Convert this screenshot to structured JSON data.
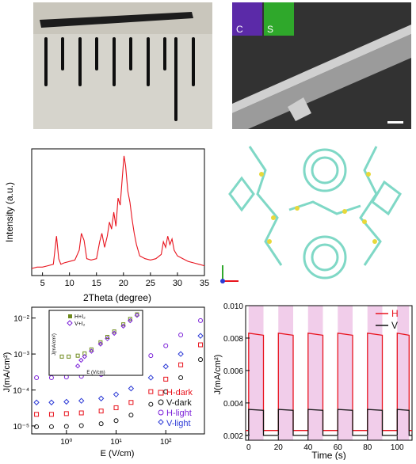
{
  "sem": {
    "map_c": "C",
    "map_s": "S"
  },
  "xrd": {
    "ylabel": "Intensity (a.u.)",
    "xlabel": "2Theta (degree)",
    "xticks": [
      "5",
      "10",
      "15",
      "20",
      "25",
      "30",
      "35"
    ]
  },
  "crystal": {
    "axes": [
      "Y",
      "Z",
      "X"
    ]
  },
  "jv": {
    "ylabel": "J(mA/cm²)",
    "xlabel": "E (V/cm)",
    "yticks": [
      "10⁻⁵",
      "10⁻⁴",
      "10⁻³",
      "10⁻²"
    ],
    "xticks": [
      "10⁰",
      "10¹",
      "10²"
    ],
    "legend": [
      "H-dark",
      "V-dark",
      "H-light",
      "V-light"
    ],
    "inset": {
      "legend": [
        "H+I₂",
        "V+I₂"
      ],
      "ylabel": "J(mA/cm²)",
      "xlabel": "E (V/cm)",
      "yticks": [
        "10⁰",
        "10⁻¹",
        "10⁻²",
        "10⁻³"
      ],
      "xticks": [
        "10⁻¹",
        "10⁰",
        "10¹",
        "10²"
      ]
    },
    "colors": {
      "H-dark": "#e8141e",
      "V-dark": "#111111",
      "H-light": "#7a1fd8",
      "V-light": "#2c3ad6"
    }
  },
  "jt": {
    "ylabel": "J(mA/cm²)",
    "xlabel": "Time (s)",
    "yticks": [
      "0.002",
      "0.004",
      "0.006",
      "0.008",
      "0.010"
    ],
    "xticks": [
      "0",
      "20",
      "40",
      "60",
      "80",
      "100"
    ],
    "legend": [
      "H",
      "V"
    ],
    "colors": {
      "H": "#e8141e",
      "V": "#111111",
      "light": "#f1cdea"
    }
  },
  "chart_data": [
    {
      "type": "line",
      "xlabel": "2Theta (degree)",
      "ylabel": "Intensity (a.u.)",
      "xlim": [
        3,
        35
      ],
      "series": [
        {
          "x": [
            3,
            4,
            5,
            6,
            7,
            7.6,
            8,
            8.4,
            9,
            10,
            11,
            11.8,
            12.2,
            12.7,
            13.2,
            14,
            15,
            15.6,
            16,
            16.5,
            17,
            17.4,
            17.8,
            18.2,
            18.6,
            19,
            19.4,
            19.8,
            20.1,
            20.4,
            20.8,
            21.2,
            21.6,
            22,
            22.4,
            23,
            24,
            25,
            26,
            27,
            27.4,
            27.8,
            28.2,
            28.6,
            29,
            29.4,
            30,
            31,
            32,
            33,
            34,
            35
          ],
          "y": [
            5,
            6,
            6,
            7,
            8,
            28,
            12,
            8,
            9,
            10,
            11,
            18,
            30,
            25,
            12,
            11,
            12,
            24,
            30,
            20,
            28,
            38,
            33,
            45,
            35,
            55,
            50,
            70,
            85,
            78,
            60,
            52,
            40,
            30,
            22,
            14,
            12,
            11,
            12,
            15,
            24,
            20,
            28,
            22,
            26,
            18,
            14,
            12,
            10,
            9,
            8,
            7
          ]
        }
      ]
    },
    {
      "type": "line",
      "xlabel": "E (V/cm)",
      "ylabel": "J(mA/cm²)",
      "xscale": "log",
      "yscale": "log",
      "xlim": [
        0.2,
        600
      ],
      "ylim": [
        6e-06,
        0.02
      ],
      "series": [
        {
          "name": "H-dark",
          "x": [
            0.25,
            0.5,
            1,
            2,
            5,
            10,
            20,
            50,
            100,
            200,
            500
          ],
          "y": [
            2.1e-05,
            2.1e-05,
            2.2e-05,
            2.3e-05,
            2.6e-05,
            3.2e-05,
            4.5e-05,
            9e-05,
            0.0002,
            0.0005,
            0.0018
          ]
        },
        {
          "name": "V-dark",
          "x": [
            0.25,
            0.5,
            1,
            2,
            5,
            10,
            20,
            50,
            100,
            200,
            500
          ],
          "y": [
            9.5e-06,
            9.5e-06,
            9.7e-06,
            1.02e-05,
            1.15e-05,
            1.4e-05,
            2e-05,
            4e-05,
            9e-05,
            0.00022,
            0.0007
          ]
        },
        {
          "name": "H-light",
          "x": [
            0.25,
            0.5,
            1,
            2,
            5,
            10,
            20,
            50,
            100,
            200,
            500
          ],
          "y": [
            0.00022,
            0.00022,
            0.00023,
            0.00024,
            0.00027,
            0.00032,
            0.00045,
            0.0009,
            0.0017,
            0.0034,
            0.0085
          ]
        },
        {
          "name": "V-light",
          "x": [
            0.25,
            0.5,
            1,
            2,
            5,
            10,
            20,
            50,
            100,
            200,
            500
          ],
          "y": [
            4.5e-05,
            4.5e-05,
            4.7e-05,
            5e-05,
            5.8e-05,
            7.5e-05,
            0.00011,
            0.00022,
            0.00045,
            0.001,
            0.0032
          ]
        }
      ]
    },
    {
      "type": "line",
      "xlabel": "E (V/cm)",
      "ylabel": "J(mA/cm²)",
      "xscale": "log",
      "yscale": "log",
      "xlim": [
        0.1,
        300
      ],
      "ylim": [
        0.001,
        1
      ],
      "series": [
        {
          "name": "H+I₂",
          "x": [
            0.1,
            0.2,
            0.5,
            1,
            2,
            5,
            10,
            20,
            50,
            100,
            200
          ],
          "y": [
            0.004,
            0.004,
            0.0045,
            0.006,
            0.01,
            0.025,
            0.05,
            0.1,
            0.25,
            0.5,
            0.9
          ]
        },
        {
          "name": "V+I₂",
          "x": [
            0.5,
            0.7,
            1,
            2,
            5,
            10,
            20,
            50,
            100,
            200
          ],
          "y": [
            0.0012,
            0.0025,
            0.004,
            0.008,
            0.02,
            0.04,
            0.08,
            0.2,
            0.4,
            0.8
          ]
        }
      ]
    },
    {
      "type": "line",
      "xlabel": "Time (s)",
      "ylabel": "J(mA/cm²)",
      "xlim": [
        -2,
        110
      ],
      "ylim": [
        0.0017,
        0.01
      ],
      "light_on_intervals": [
        [
          0,
          10
        ],
        [
          20,
          30
        ],
        [
          40,
          50
        ],
        [
          60,
          70
        ],
        [
          80,
          90
        ],
        [
          100,
          108
        ]
      ],
      "series": [
        {
          "name": "H",
          "on": 0.0083,
          "off": 0.0023
        },
        {
          "name": "V",
          "on": 0.0036,
          "off": 0.002
        }
      ]
    }
  ]
}
